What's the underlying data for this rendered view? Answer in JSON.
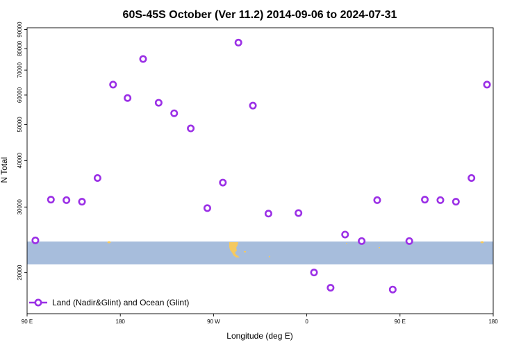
{
  "chart_data": {
    "type": "scatter",
    "title": "60S-45S October (Ver 11.2)   2014-09-06 to 2024-07-31",
    "xlabel": "Longitude (deg E)",
    "ylabel": "N Total",
    "x_tick_labels": [
      "90 E",
      "180",
      "90 W",
      "0",
      "90 E",
      "180"
    ],
    "x_ticks": [
      90,
      180,
      270,
      360,
      450,
      540
    ],
    "xlim": [
      90,
      540
    ],
    "y_scale": "log",
    "y_ticks": [
      20000,
      30000,
      40000,
      50000,
      60000,
      70000,
      80000,
      90000
    ],
    "y_tick_labels": [
      "20000",
      "30000",
      "40000",
      "50000",
      "60000",
      "70000",
      "80000",
      "90000"
    ],
    "ylim": [
      15500,
      91000
    ],
    "grid": false,
    "legend": {
      "position": "bottom-left",
      "entries": [
        {
          "label": "Land (Nadir&Glint) and Ocean (Glint)",
          "color": "#9b30e6"
        }
      ]
    },
    "marker_color": "#9b30e6",
    "map_colors": {
      "ocean": "#a7bddc",
      "land": "#f5c95f"
    },
    "map_band": {
      "lat_min": -60,
      "lat_max": -45
    },
    "series": [
      {
        "name": "Land (Nadir&Glint) and Ocean (Glint)",
        "x": [
          98,
          113,
          128,
          143,
          158,
          173,
          187,
          202,
          217,
          232,
          248,
          264,
          279,
          294,
          308,
          323,
          352,
          367,
          383,
          397,
          413,
          428,
          443,
          459,
          474,
          489,
          504,
          519,
          534
        ],
        "y": [
          24400,
          31400,
          31300,
          31000,
          35900,
          64000,
          58900,
          75000,
          57200,
          53600,
          48800,
          29800,
          34900,
          83000,
          56200,
          28800,
          28900,
          20000,
          18200,
          25300,
          24300,
          31300,
          18000,
          24300,
          31400,
          31300,
          31000,
          35900,
          64000
        ]
      }
    ]
  }
}
